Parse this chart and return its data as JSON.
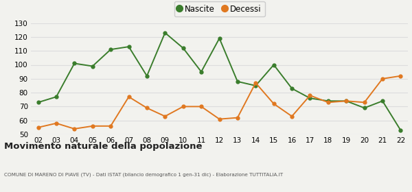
{
  "years": [
    "02",
    "03",
    "04",
    "05",
    "06",
    "07",
    "08",
    "09",
    "10",
    "11",
    "12",
    "13",
    "14",
    "15",
    "16",
    "17",
    "18",
    "19",
    "20",
    "21",
    "22"
  ],
  "nascite": [
    73,
    77,
    101,
    99,
    111,
    113,
    92,
    123,
    112,
    95,
    119,
    88,
    85,
    100,
    83,
    76,
    74,
    74,
    69,
    74,
    53
  ],
  "decessi": [
    55,
    58,
    54,
    56,
    56,
    77,
    69,
    63,
    70,
    70,
    61,
    62,
    87,
    72,
    63,
    78,
    73,
    74,
    73,
    90,
    92
  ],
  "nascite_color": "#3a7d2c",
  "decessi_color": "#e07820",
  "background_color": "#f2f2ee",
  "grid_color": "#dddddd",
  "title": "Movimento naturale della popolazione",
  "subtitle": "COMUNE DI MARENO DI PIAVE (TV) - Dati ISTAT (bilancio demografico 1 gen-31 dic) - Elaborazione TUTTITALIA.IT",
  "legend_nascite": "Nascite",
  "legend_decessi": "Decessi",
  "ylim": [
    50,
    130
  ],
  "yticks": [
    50,
    60,
    70,
    80,
    90,
    100,
    110,
    120,
    130
  ]
}
